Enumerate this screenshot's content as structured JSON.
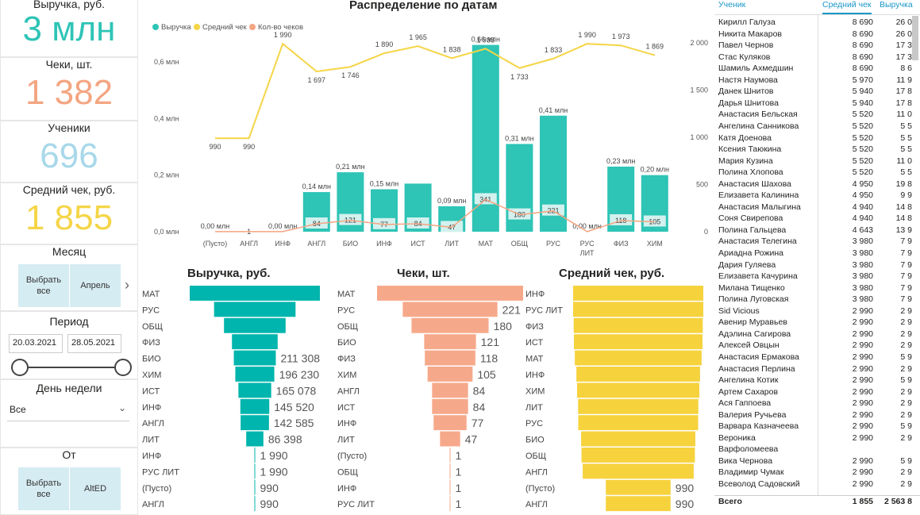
{
  "kpis": [
    {
      "title": "Выручка, руб.",
      "value": "3 млн",
      "color": "#2ec4b6"
    },
    {
      "title": "Чеки, шт.",
      "value": "1 382",
      "color": "#f4a582"
    },
    {
      "title": "Ученики",
      "value": "696",
      "color": "#a8d8ea"
    },
    {
      "title": "Средний чек, руб.",
      "value": "1 855",
      "color": "#f5d547"
    }
  ],
  "filters": {
    "month": {
      "title": "Месяц",
      "select_all": "Выбрать все",
      "selected": "Апрель",
      "next_icon": "chevron-right-icon"
    },
    "period": {
      "title": "Период",
      "from": "20.03.2021",
      "to": "28.05.2021"
    },
    "weekday": {
      "title": "День недели",
      "value": "Все"
    },
    "source": {
      "title": "От",
      "select_all": "Выбрать все",
      "selected": "AltED"
    }
  },
  "combo_chart": {
    "title": "Распределение по датам",
    "legend": [
      "Выручка",
      "Средний чек",
      "Кол-во чеков"
    ],
    "colors": {
      "revenue": "#2ec4b6",
      "avg": "#f5d547",
      "count": "#f4a582"
    },
    "left_ticks": [
      "0,0 млн",
      "0,2 млн",
      "0,4 млн",
      "0,6 млн"
    ],
    "right_ticks": [
      "0",
      "500",
      "1 000",
      "1 500",
      "2 000"
    ]
  },
  "chart_data": [
    {
      "type": "bar",
      "title": "Распределение по датам",
      "categories": [
        "(Пусто)",
        "АНГЛ",
        "ИНФ",
        "АНГЛ",
        "БИО",
        "ИНФ",
        "ИСТ",
        "ЛИТ",
        "МАТ",
        "ОБЩ",
        "РУС",
        "РУС ЛИТ",
        "ФИЗ",
        "ХИМ"
      ],
      "series": [
        {
          "name": "Выручка",
          "values": [
            0.0,
            0.0,
            0.0,
            0.14,
            0.21,
            0.15,
            0.17,
            0.09,
            0.66,
            0.31,
            0.41,
            0.0,
            0.23,
            0.2
          ],
          "labels": [
            "0,00 млн",
            "",
            "0,00 млн",
            "0,14 млн",
            "0,21 млн",
            "0,15 млн",
            "",
            "0,09 млн",
            "0,66 млн",
            "0,31 млн",
            "0,41 млн",
            "0,00 млн",
            "0,23 млн",
            "0,20 млн"
          ]
        },
        {
          "name": "Средний чек",
          "values": [
            990,
            990,
            1990,
            1697,
            1746,
            1890,
            1965,
            1838,
            1938,
            1733,
            1833,
            1990,
            1973,
            1869
          ],
          "labels": [
            "990",
            "990",
            "1 990",
            "1 697",
            "1 746",
            "1 890",
            "1 965",
            "1 838",
            "1 938",
            "1 733",
            "1 833",
            "1 990",
            "1 973",
            "1 869"
          ]
        },
        {
          "name": "Кол-во чеков",
          "values": [
            1,
            1,
            1,
            84,
            121,
            77,
            84,
            47,
            341,
            180,
            221,
            1,
            118,
            105
          ],
          "labels": [
            "",
            "1",
            "",
            "84",
            "121",
            "77",
            "84",
            "47",
            "341",
            "180",
            "221",
            "",
            "118",
            "105"
          ]
        }
      ],
      "ylabel": "",
      "ylim": [
        0,
        0.7
      ],
      "y2lim": [
        0,
        2000
      ]
    },
    {
      "type": "bar",
      "title": "Выручка, руб.",
      "categories": [
        "МАТ",
        "РУС",
        "ОБЩ",
        "ФИЗ",
        "БИО",
        "ХИМ",
        "ИСТ",
        "ИНФ",
        "АНГЛ",
        "ЛИТ",
        "ИНФ",
        "РУС ЛИТ",
        "(Пусто)",
        "АНГЛ"
      ],
      "values": [
        655000,
        410000,
        310000,
        230000,
        211308,
        196230,
        165078,
        145520,
        142585,
        86398,
        1990,
        1990,
        990,
        990
      ],
      "labels": [
        "",
        "",
        "",
        "",
        "211 308",
        "196 230",
        "165 078",
        "145 520",
        "142 585",
        "86 398",
        "1 990",
        "1 990",
        "990",
        "990"
      ]
    },
    {
      "type": "bar",
      "title": "Чеки, шт.",
      "categories": [
        "МАТ",
        "РУС",
        "ОБЩ",
        "БИО",
        "ФИЗ",
        "ХИМ",
        "АНГЛ",
        "ИСТ",
        "ИНФ",
        "ЛИТ",
        "(Пусто)",
        "ОБЩ",
        "ИНФ",
        "РУС ЛИТ"
      ],
      "values": [
        341,
        221,
        180,
        121,
        118,
        105,
        84,
        84,
        77,
        47,
        1,
        1,
        1,
        1
      ],
      "labels": [
        "",
        "221",
        "180",
        "121",
        "118",
        "105",
        "84",
        "84",
        "77",
        "47",
        "1",
        "1",
        "1",
        "1"
      ]
    },
    {
      "type": "bar",
      "title": "Средний чек, руб.",
      "categories": [
        "ИНФ",
        "РУС ЛИТ",
        "ФИЗ",
        "ИСТ",
        "МАТ",
        "ИНФ",
        "ХИМ",
        "ЛИТ",
        "РУС",
        "БИО",
        "ОБЩ",
        "АНГЛ",
        "(Пусто)",
        "АНГЛ"
      ],
      "values": [
        1990,
        1990,
        1973,
        1965,
        1938,
        1890,
        1869,
        1838,
        1833,
        1746,
        1733,
        1697,
        990,
        990
      ],
      "labels": [
        "",
        "",
        "",
        "",
        "",
        "",
        "",
        "",
        "",
        "",
        "",
        "",
        "990",
        "990"
      ]
    }
  ],
  "table": {
    "headers": [
      "Ученик",
      "Средний чек",
      "Выручка"
    ],
    "rows": [
      [
        "Кирилл Галуза",
        "8 690",
        "26 0"
      ],
      [
        "Никита Макаров",
        "8 690",
        "26 0"
      ],
      [
        "Павел Чернов",
        "8 690",
        "17 3"
      ],
      [
        "Стас Куляков",
        "8 690",
        "17 3"
      ],
      [
        "Шамиль Ахмедшин",
        "8 690",
        "8 6"
      ],
      [
        "Настя Наумова",
        "5 970",
        "11 9"
      ],
      [
        "Данек Шнитов",
        "5 940",
        "17 8"
      ],
      [
        "Дарья Шнитова",
        "5 940",
        "17 8"
      ],
      [
        "Анастасия Бельская",
        "5 520",
        "11 0"
      ],
      [
        "Ангелина Санникова",
        "5 520",
        "5 5"
      ],
      [
        "Катя Доенова",
        "5 520",
        "5 5"
      ],
      [
        "Ксения Таюкина",
        "5 520",
        "5 5"
      ],
      [
        "Мария Кузина",
        "5 520",
        "11 0"
      ],
      [
        "Полина Хлопова",
        "5 520",
        "5 5"
      ],
      [
        "Анастасия Шахова",
        "4 950",
        "19 8"
      ],
      [
        "Елизавета Калинина",
        "4 950",
        "9 9"
      ],
      [
        "Анастасия Малыгина",
        "4 940",
        "14 8"
      ],
      [
        "Соня Свирепова",
        "4 940",
        "14 8"
      ],
      [
        "Полина Гальцева",
        "4 643",
        "13 9"
      ],
      [
        "Анастасия Телегина",
        "3 980",
        "7 9"
      ],
      [
        "Ариадна Рожина",
        "3 980",
        "7 9"
      ],
      [
        "Дария Гуляева",
        "3 980",
        "7 9"
      ],
      [
        "Елизавета Качурина",
        "3 980",
        "7 9"
      ],
      [
        "Милана Тищенко",
        "3 980",
        "7 9"
      ],
      [
        "Полина Луговская",
        "3 980",
        "7 9"
      ],
      [
        "Sid Vicious",
        "2 990",
        "2 9"
      ],
      [
        "Авенир Муравьев",
        "2 990",
        "2 9"
      ],
      [
        "Адэлина Сагирова",
        "2 990",
        "2 9"
      ],
      [
        "Алексей Овцын",
        "2 990",
        "2 9"
      ],
      [
        "Анастасия Ермакова",
        "2 990",
        "5 9"
      ],
      [
        "Анастасия Перлина",
        "2 990",
        "2 9"
      ],
      [
        "Ангелина Котик",
        "2 990",
        "5 9"
      ],
      [
        "Артем Сахаров",
        "2 990",
        "2 9"
      ],
      [
        "Ася Гаппоева",
        "2 990",
        "2 9"
      ],
      [
        "Валерия Ручьева",
        "2 990",
        "2 9"
      ],
      [
        "Варвара Казначеева",
        "2 990",
        "5 9"
      ],
      [
        "Вероника",
        "2 990",
        "2 9"
      ],
      [
        "Варфоломеева",
        "",
        ""
      ],
      [
        "Вика Чернова",
        "2 990",
        "5 9"
      ],
      [
        "Владимир Чумак",
        "2 990",
        "2 9"
      ],
      [
        "Всеволод Садовский",
        "2 990",
        "2 9"
      ]
    ],
    "total": [
      "Всего",
      "1 855",
      "2 563 8"
    ]
  }
}
